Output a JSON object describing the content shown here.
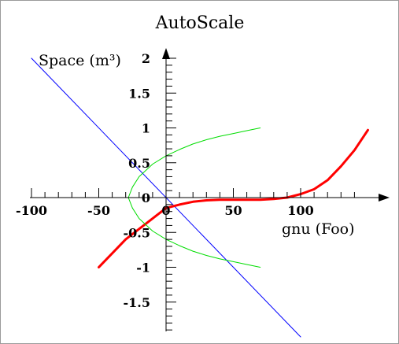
{
  "chart_data": {
    "type": "line",
    "title": "AutoScale",
    "xlabel": "gnu (Foo)",
    "ylabel": "Space (m³)",
    "xlim": [
      -100,
      160
    ],
    "ylim": [
      -2,
      2
    ],
    "x_ticks": [
      {
        "value": -100,
        "label": "-100"
      },
      {
        "value": -50,
        "label": "-50"
      },
      {
        "value": 0,
        "label": "0"
      },
      {
        "value": 50,
        "label": "50"
      },
      {
        "value": 100,
        "label": "100"
      }
    ],
    "y_ticks": [
      {
        "value": 2,
        "label": "2"
      },
      {
        "value": 1.5,
        "label": "1.5"
      },
      {
        "value": 1,
        "label": "1"
      },
      {
        "value": 0.5,
        "label": "0.5"
      },
      {
        "value": 0,
        "label": "0"
      },
      {
        "value": -0.5,
        "label": "-0.5"
      },
      {
        "value": -1,
        "label": "-1"
      },
      {
        "value": -1.5,
        "label": "-1.5"
      }
    ],
    "grid": false,
    "series": [
      {
        "color": "#0000ff",
        "x": [
          -100,
          100
        ],
        "y": [
          2,
          -2
        ]
      },
      {
        "color": "#ff0000",
        "x": [
          -50,
          -40,
          -30,
          -20,
          -10,
          0,
          10,
          20,
          30,
          40,
          50,
          60,
          70,
          80,
          90,
          100,
          110,
          120,
          130,
          140,
          150
        ],
        "y": [
          -1,
          -0.8,
          -0.6,
          -0.45,
          -0.3,
          -0.15,
          -0.1,
          -0.06,
          -0.04,
          -0.03,
          -0.03,
          -0.03,
          -0.03,
          -0.02,
          0,
          0.05,
          0.12,
          0.25,
          0.45,
          0.68,
          0.97
        ]
      },
      {
        "color": "#00dd00",
        "x": [
          70,
          60,
          50,
          40,
          30,
          20,
          10,
          0,
          -10,
          -20,
          -25,
          -28,
          -25,
          -20,
          -10,
          0,
          10,
          20,
          30,
          40,
          50,
          60,
          70
        ],
        "y": [
          1,
          0.96,
          0.92,
          0.88,
          0.83,
          0.77,
          0.69,
          0.6,
          0.48,
          0.3,
          0.15,
          0,
          -0.15,
          -0.3,
          -0.48,
          -0.6,
          -0.69,
          -0.77,
          -0.83,
          -0.88,
          -0.92,
          -0.96,
          -1
        ]
      }
    ]
  }
}
